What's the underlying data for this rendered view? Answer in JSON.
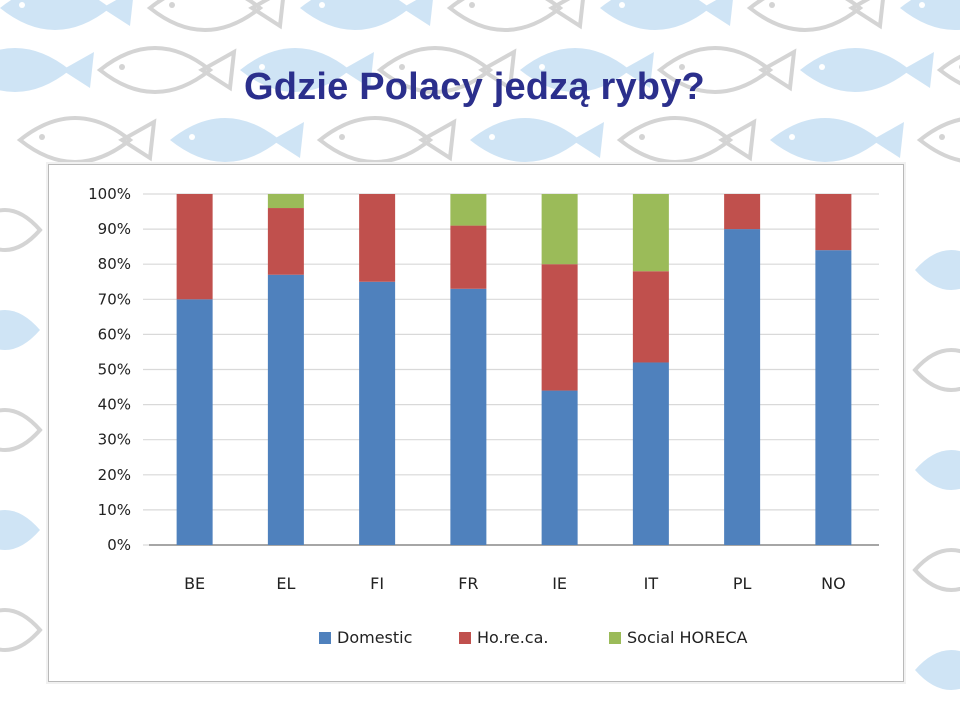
{
  "page": {
    "title": "Gdzie Polacy jedzą ryby?"
  },
  "colors": {
    "background_pattern": "#cfe4f5",
    "title": "#2b2f8c",
    "gridline": "#d9d9d9"
  },
  "chart_data": {
    "type": "bar",
    "stacked": true,
    "categories": [
      "BE",
      "EL",
      "FI",
      "FR",
      "IE",
      "IT",
      "PL",
      "NO"
    ],
    "series": [
      {
        "name": "Domestic",
        "color": "#4f81bd",
        "values": [
          70,
          77,
          75,
          73,
          44,
          52,
          90,
          84
        ]
      },
      {
        "name": "Ho.re.ca.",
        "color": "#c0504d",
        "values": [
          30,
          19,
          25,
          18,
          36,
          26,
          10,
          16
        ]
      },
      {
        "name": "Social HORECA",
        "color": "#9bbb59",
        "values": [
          0,
          4,
          0,
          9,
          20,
          22,
          0,
          0
        ]
      }
    ],
    "ylim": [
      0,
      100
    ],
    "yticks": [
      "0%",
      "10%",
      "20%",
      "30%",
      "40%",
      "50%",
      "60%",
      "70%",
      "80%",
      "90%",
      "100%"
    ],
    "grid": true,
    "legend_position": "bottom"
  }
}
